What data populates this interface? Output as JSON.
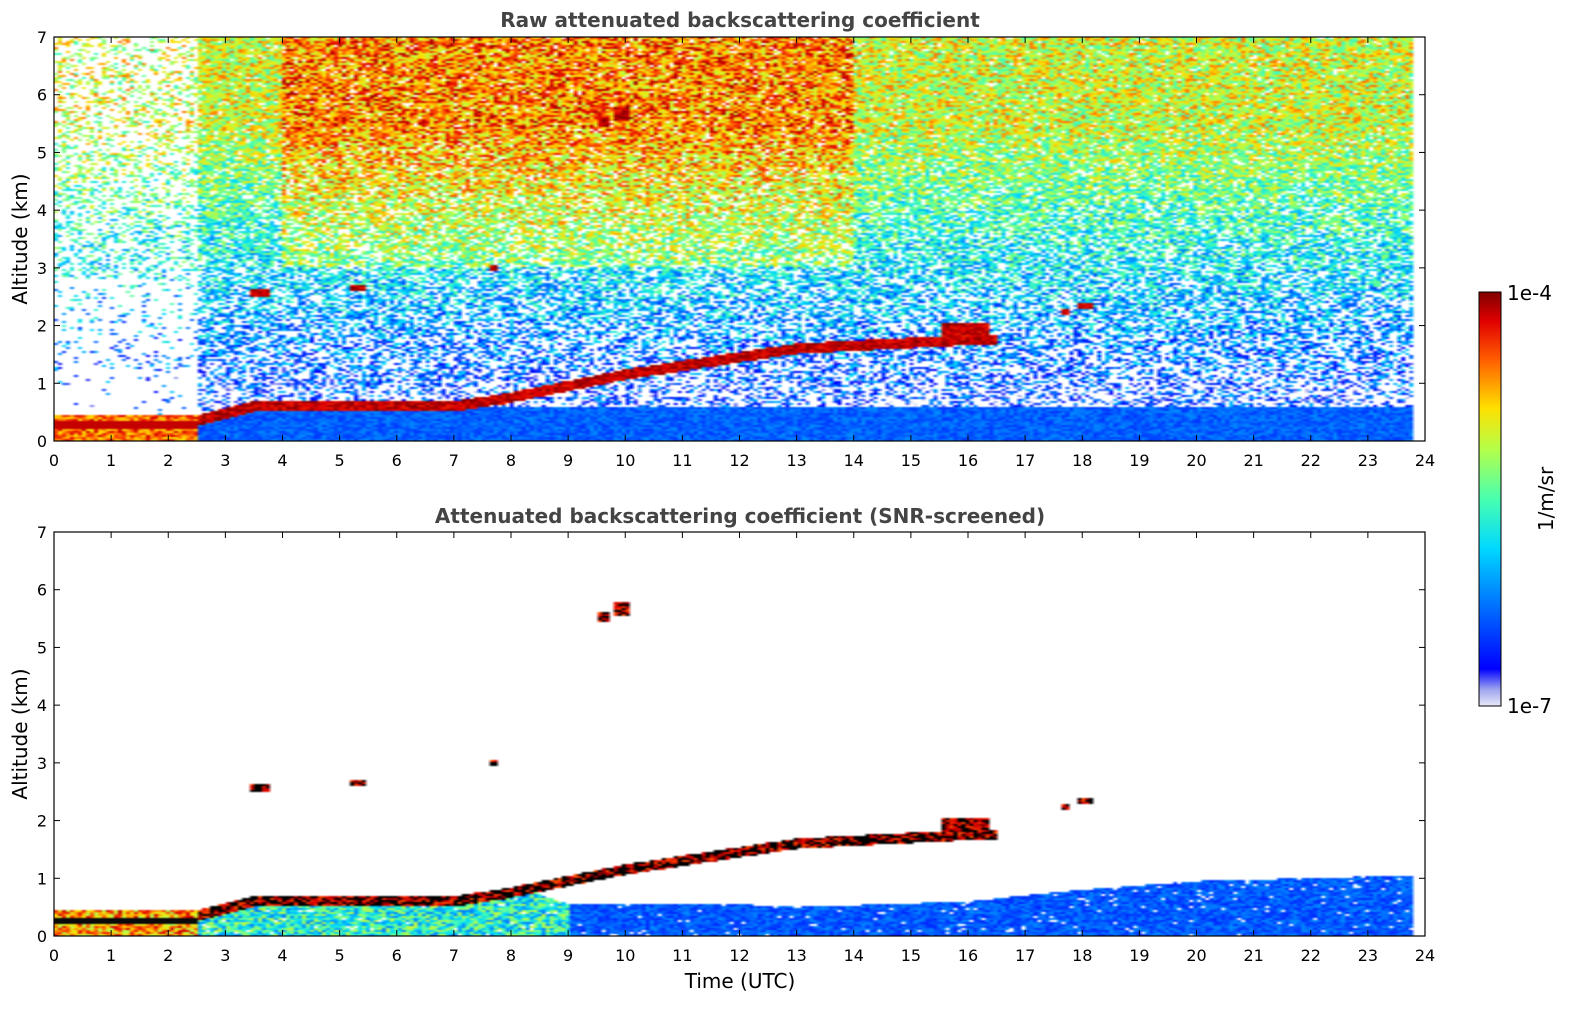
{
  "chart_data": [
    {
      "type": "heatmap",
      "title": "Raw attenuated backscattering coefficient",
      "xlabel": "",
      "ylabel": "Altitude (km)",
      "xlim": [
        0,
        24
      ],
      "ylim": [
        0,
        7
      ],
      "xticks": [
        0,
        1,
        2,
        3,
        4,
        5,
        6,
        7,
        8,
        9,
        10,
        11,
        12,
        13,
        14,
        15,
        16,
        17,
        18,
        19,
        20,
        21,
        22,
        23,
        24
      ],
      "yticks": [
        0,
        1,
        2,
        3,
        4,
        5,
        6,
        7
      ],
      "grid": false,
      "data_end_time": 23.8,
      "features": {
        "low_aerosol_layer_top_km": 0.45,
        "low_aerosol_layer_until_utc": 2.5,
        "boundary_layer_top": [
          {
            "t": 2.5,
            "z": 0.35
          },
          {
            "t": 3.5,
            "z": 0.6
          },
          {
            "t": 5.0,
            "z": 0.6
          },
          {
            "t": 6.0,
            "z": 0.6
          },
          {
            "t": 7.0,
            "z": 0.6
          },
          {
            "t": 8.0,
            "z": 0.75
          },
          {
            "t": 9.0,
            "z": 0.95
          },
          {
            "t": 10.0,
            "z": 1.15
          },
          {
            "t": 11.0,
            "z": 1.3
          },
          {
            "t": 12.0,
            "z": 1.45
          },
          {
            "t": 13.0,
            "z": 1.6
          },
          {
            "t": 14.0,
            "z": 1.65
          },
          {
            "t": 15.0,
            "z": 1.7
          },
          {
            "t": 16.0,
            "z": 1.75
          }
        ],
        "cloud_patches": [
          {
            "t0": 3.4,
            "t1": 3.8,
            "z0": 2.5,
            "z1": 2.65
          },
          {
            "t0": 5.2,
            "t1": 5.45,
            "z0": 2.6,
            "z1": 2.7
          },
          {
            "t0": 7.65,
            "t1": 7.75,
            "z0": 2.95,
            "z1": 3.05
          },
          {
            "t0": 9.5,
            "t1": 9.7,
            "z0": 5.45,
            "z1": 5.6
          },
          {
            "t0": 9.8,
            "t1": 10.05,
            "z0": 5.55,
            "z1": 5.8
          },
          {
            "t0": 15.5,
            "t1": 16.4,
            "z0": 1.65,
            "z1": 2.05
          },
          {
            "t0": 17.6,
            "t1": 17.8,
            "z0": 2.2,
            "z1": 2.3
          },
          {
            "t0": 17.9,
            "t1": 18.2,
            "z0": 2.3,
            "z1": 2.4
          }
        ]
      }
    },
    {
      "type": "heatmap",
      "title": "Attenuated backscattering coefficient (SNR-screened)",
      "xlabel": "Time (UTC)",
      "ylabel": "Altitude (km)",
      "xlim": [
        0,
        24
      ],
      "ylim": [
        0,
        7
      ],
      "xticks": [
        0,
        1,
        2,
        3,
        4,
        5,
        6,
        7,
        8,
        9,
        10,
        11,
        12,
        13,
        14,
        15,
        16,
        17,
        18,
        19,
        20,
        21,
        22,
        23,
        24
      ],
      "yticks": [
        0,
        1,
        2,
        3,
        4,
        5,
        6,
        7
      ],
      "grid": false,
      "data_end_time": 23.8,
      "features": {
        "screened_aerosol_top": [
          {
            "t": 0,
            "z": 0.45
          },
          {
            "t": 2.5,
            "z": 0.45
          },
          {
            "t": 3,
            "z": 0.75
          },
          {
            "t": 6,
            "z": 0.75
          },
          {
            "t": 8,
            "z": 0.9
          },
          {
            "t": 9,
            "z": 0.55
          },
          {
            "t": 12,
            "z": 0.55
          },
          {
            "t": 13,
            "z": 0.5
          },
          {
            "t": 16,
            "z": 0.6
          },
          {
            "t": 18,
            "z": 0.8
          },
          {
            "t": 20,
            "z": 0.95
          },
          {
            "t": 23.8,
            "z": 1.05
          }
        ]
      }
    }
  ],
  "colorbar": {
    "label": "1/m/sr",
    "max_label": "1e-4",
    "min_label": "1e-7",
    "scale": "log",
    "colormap": "jet"
  }
}
